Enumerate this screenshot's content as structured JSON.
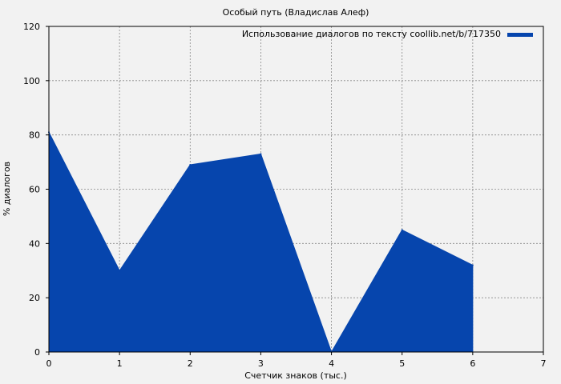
{
  "chart_data": {
    "type": "area",
    "title": "Особый путь (Владислав Алеф)",
    "xlabel": "Счетчик знаков (тыс.)",
    "ylabel": "% диалогов",
    "xlim": [
      0,
      7
    ],
    "ylim": [
      0,
      120
    ],
    "xticks": [
      0,
      1,
      2,
      3,
      4,
      5,
      6,
      7
    ],
    "yticks": [
      0,
      20,
      40,
      60,
      80,
      100,
      120
    ],
    "grid": true,
    "legend_position": "top-right",
    "series": [
      {
        "name": "Использование диалогов по тексту coollib.net/b/717350",
        "color": "#0645ad",
        "x": [
          0,
          1,
          2,
          3,
          4,
          5,
          6
        ],
        "y": [
          81,
          30,
          69,
          73,
          0,
          45,
          32
        ]
      }
    ]
  }
}
